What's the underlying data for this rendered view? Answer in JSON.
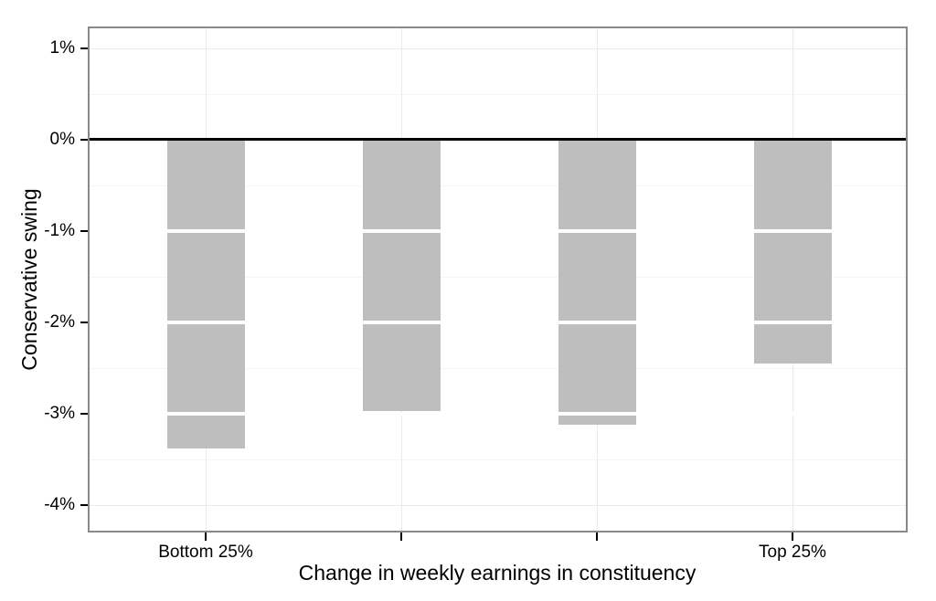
{
  "chart_data": {
    "type": "bar",
    "categories": [
      "Bottom 25%",
      "",
      "",
      "Top 25%"
    ],
    "values": [
      -3.38,
      -2.97,
      -3.12,
      -2.45
    ],
    "title": "",
    "xlabel": "Change in weekly earnings in constituency",
    "ylabel": "Conservative swing",
    "ylim": [
      -4.3,
      1.22
    ],
    "y_tick_values": [
      1,
      0,
      -1,
      -2,
      -3,
      -4
    ],
    "y_tick_labels": [
      "1%",
      "0%",
      "-1%",
      "-2%",
      "-3%",
      "-4%"
    ],
    "y_minor_tick_values": [
      0.5,
      -0.5,
      -1.5,
      -2.5,
      -3.5
    ],
    "segment_boundaries": [
      -1,
      -2,
      -3
    ],
    "legend_position": "none",
    "grid": "on",
    "colors": {
      "bar_fill": "#bebebe",
      "segment_divider": "#ffffff",
      "zero_line": "#000000",
      "grid_major": "#ebebeb",
      "grid_minor": "#f5f5f5",
      "panel_border": "#898989",
      "axis_text": "#000000"
    }
  }
}
